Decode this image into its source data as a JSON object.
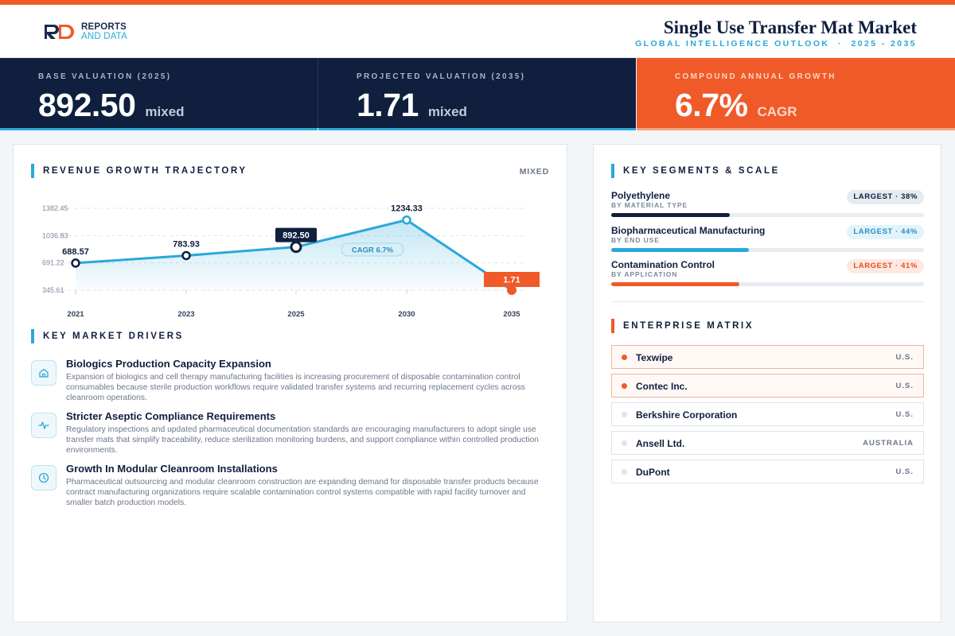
{
  "header": {
    "logo_line1": "REPORTS",
    "logo_line2": "AND DATA",
    "title": "Single Use Transfer Mat Market",
    "subtitle": "GLOBAL INTELLIGENCE OUTLOOK  ·  2025 - 2035"
  },
  "kpis": [
    {
      "label": "BASE VALUATION (2025)",
      "value": "892.50",
      "unit": "mixed"
    },
    {
      "label": "PROJECTED VALUATION (2035)",
      "value": "1.71",
      "unit": "mixed"
    },
    {
      "label": "COMPOUND ANNUAL GROWTH",
      "value": "6.7%",
      "unit": "CAGR"
    }
  ],
  "chart_section": {
    "title": "REVENUE GROWTH TRAJECTORY",
    "unit_label": "MIXED"
  },
  "chart_data": {
    "type": "area",
    "title": "",
    "xlabel": "",
    "ylabel": "",
    "categories": [
      "2021",
      "2023",
      "2025",
      "2030",
      "2035"
    ],
    "values": [
      688.57,
      783.93,
      892.5,
      1234.33,
      1.71
    ],
    "value_labels": [
      "688.57",
      "783.93",
      "892.50",
      "1234.33",
      "1.71"
    ],
    "yticks": [
      "345.61",
      "691.22",
      "1036.83",
      "1382.45"
    ],
    "ytick_values": [
      345.61,
      691.22,
      1036.83,
      1382.45
    ],
    "ylim": [
      345.61,
      1382.45
    ],
    "annotation": "CAGR 6.7%",
    "highlight_base_index": 2,
    "highlight_end_index": 4,
    "grid": true,
    "colors": {
      "line": "#2aa8d8",
      "base": "#0f1f3d",
      "end": "#f05a28"
    }
  },
  "drivers_section": {
    "title": "KEY MARKET DRIVERS"
  },
  "drivers": [
    {
      "icon": "home-icon",
      "title": "Biologics Production Capacity Expansion",
      "desc": "Expansion of biologics and cell therapy manufacturing facilities is increasing procurement of disposable contamination control consumables because sterile production workflows require validated transfer systems and recurring replacement cycles across cleanroom operations."
    },
    {
      "icon": "activity-icon",
      "title": "Stricter Aseptic Compliance Requirements",
      "desc": "Regulatory inspections and updated pharmaceutical documentation standards are encouraging manufacturers to adopt single use transfer mats that simplify traceability, reduce sterilization monitoring burdens, and support compliance within controlled production environments."
    },
    {
      "icon": "clock-icon",
      "title": "Growth In Modular Cleanroom Installations",
      "desc": "Pharmaceutical outsourcing and modular cleanroom construction are expanding demand for disposable transfer products because contract manufacturing organizations require scalable contamination control systems compatible with rapid facility turnover and smaller batch production models."
    }
  ],
  "segments_section": {
    "title": "KEY SEGMENTS & SCALE"
  },
  "segments": [
    {
      "name": "Polyethylene",
      "category": "BY MATERIAL TYPE",
      "badge": "LARGEST · 38%",
      "share": 0.38,
      "color": "#0f1f3d"
    },
    {
      "name": "Biopharmaceutical Manufacturing",
      "category": "BY END USE",
      "badge": "LARGEST · 44%",
      "share": 0.44,
      "color": "#2aa8d8"
    },
    {
      "name": "Contamination Control",
      "category": "BY APPLICATION",
      "badge": "LARGEST · 41%",
      "share": 0.41,
      "color": "#f05a28"
    }
  ],
  "matrix_section": {
    "title": "ENTERPRISE MATRIX"
  },
  "enterprises": [
    {
      "name": "Texwipe",
      "country": "U.S.",
      "highlight": true
    },
    {
      "name": "Contec Inc.",
      "country": "U.S.",
      "highlight": true
    },
    {
      "name": "Berkshire Corporation",
      "country": "U.S.",
      "highlight": false
    },
    {
      "name": "Ansell Ltd.",
      "country": "AUSTRALIA",
      "highlight": false
    },
    {
      "name": "DuPont",
      "country": "U.S.",
      "highlight": false
    }
  ]
}
